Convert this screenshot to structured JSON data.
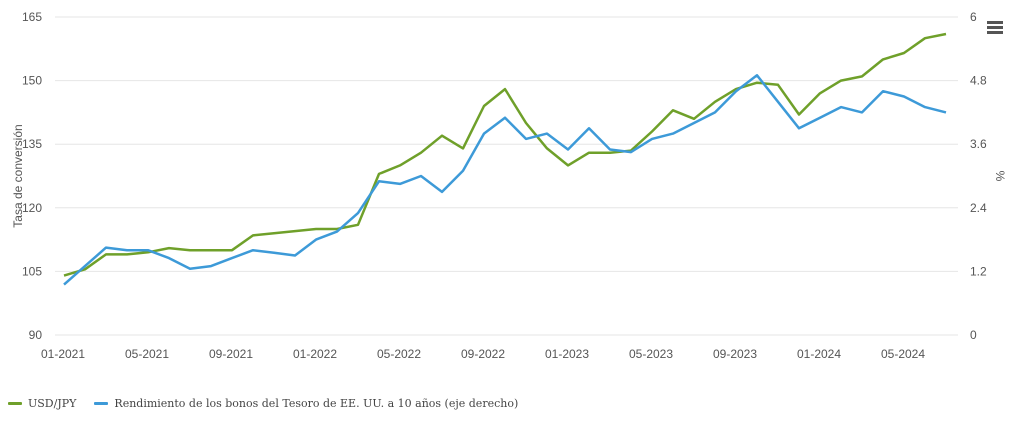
{
  "chart_data": {
    "type": "line",
    "title": "",
    "ylabel": "Tasa de conversión",
    "y2label": "%",
    "ylim": [
      90,
      165
    ],
    "y2lim": [
      0,
      6
    ],
    "yticks": [
      "90",
      "105",
      "120",
      "135",
      "150",
      "165"
    ],
    "y2ticks": [
      "0",
      "1.2",
      "2.4",
      "3.6",
      "4.8",
      "6"
    ],
    "xticks": [
      "01-2021",
      "05-2021",
      "09-2021",
      "01-2022",
      "05-2022",
      "09-2022",
      "01-2023",
      "05-2023",
      "09-2023",
      "01-2024",
      "05-2024"
    ],
    "x_start": "01-2021",
    "x_unit": "month",
    "grid": true,
    "legend_position": "bottom-left",
    "series": [
      {
        "name": "USD/JPY",
        "axis": "left",
        "color": "#6fa02a",
        "values": [
          104,
          105.5,
          109,
          109,
          109.5,
          110.5,
          110,
          110,
          110,
          113.5,
          114,
          114.5,
          115,
          115,
          116,
          128,
          130,
          133,
          137,
          134,
          144,
          148,
          140,
          134,
          130,
          133,
          133,
          133.5,
          138,
          143,
          141,
          145,
          148,
          149.5,
          149,
          142,
          147,
          150,
          151,
          155,
          156.5,
          160,
          161
        ]
      },
      {
        "name": "Rendimiento de los bonos del Tesoro de EE. UU. a 10 años (eje derecho)",
        "axis": "right",
        "color": "#3d9ad8",
        "values": [
          0.95,
          1.3,
          1.65,
          1.6,
          1.6,
          1.45,
          1.25,
          1.3,
          1.45,
          1.6,
          1.55,
          1.5,
          1.8,
          1.95,
          2.3,
          2.9,
          2.85,
          3.0,
          2.7,
          3.1,
          3.8,
          4.1,
          3.7,
          3.8,
          3.5,
          3.9,
          3.5,
          3.45,
          3.7,
          3.8,
          4.0,
          4.2,
          4.6,
          4.9,
          4.4,
          3.9,
          4.1,
          4.3,
          4.2,
          4.6,
          4.5,
          4.3,
          4.2
        ]
      }
    ]
  },
  "menu_icon": "hamburger-menu-icon"
}
